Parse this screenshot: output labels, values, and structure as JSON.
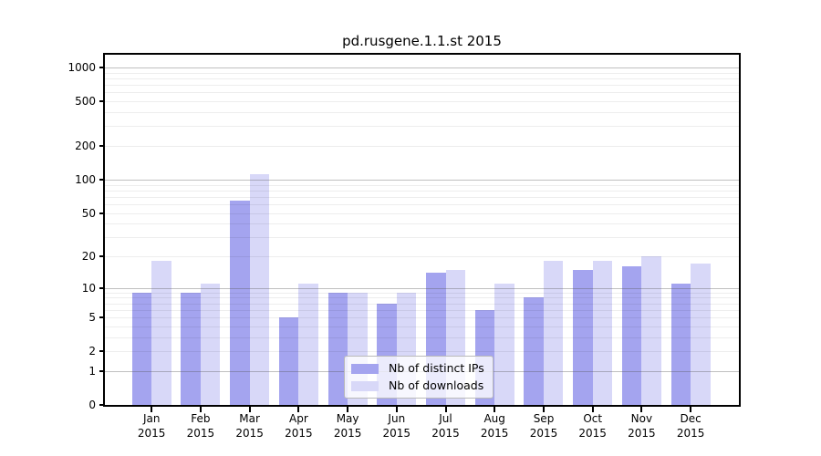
{
  "chart_data": {
    "type": "bar",
    "title": "pd.rusgene.1.1.st 2015",
    "categories": [
      "Jan",
      "Feb",
      "Mar",
      "Apr",
      "May",
      "Jun",
      "Jul",
      "Aug",
      "Sep",
      "Oct",
      "Nov",
      "Dec"
    ],
    "x_tick_second_line": "2015",
    "series": [
      {
        "name": "Nb of distinct IPs",
        "color": "#a4a4ef",
        "values": [
          9,
          9,
          65,
          5,
          9,
          7,
          14,
          6,
          8,
          15,
          16,
          11
        ]
      },
      {
        "name": "Nb of downloads",
        "color": "#d8d8f8",
        "values": [
          18,
          11,
          112,
          11,
          9,
          9,
          15,
          11,
          18,
          18,
          20,
          17
        ]
      }
    ],
    "y_ticks": [
      1000,
      500,
      200,
      100,
      50,
      20,
      10,
      5,
      2,
      1,
      0
    ],
    "y_scale": "log10(1+value)",
    "ylim": [
      0,
      1300
    ],
    "xlabel": "",
    "ylabel": "",
    "grid": "major and minor horizontal log gridlines, drawn over bars",
    "legend_position": "inside bottom-center"
  },
  "colors": {
    "background": "#ffffff",
    "axis_frame": "#000000",
    "grid_major": "#bdbdbd",
    "grid_minor": "#ededed",
    "legend_border": "#b9b9b9",
    "text": "#000000"
  }
}
